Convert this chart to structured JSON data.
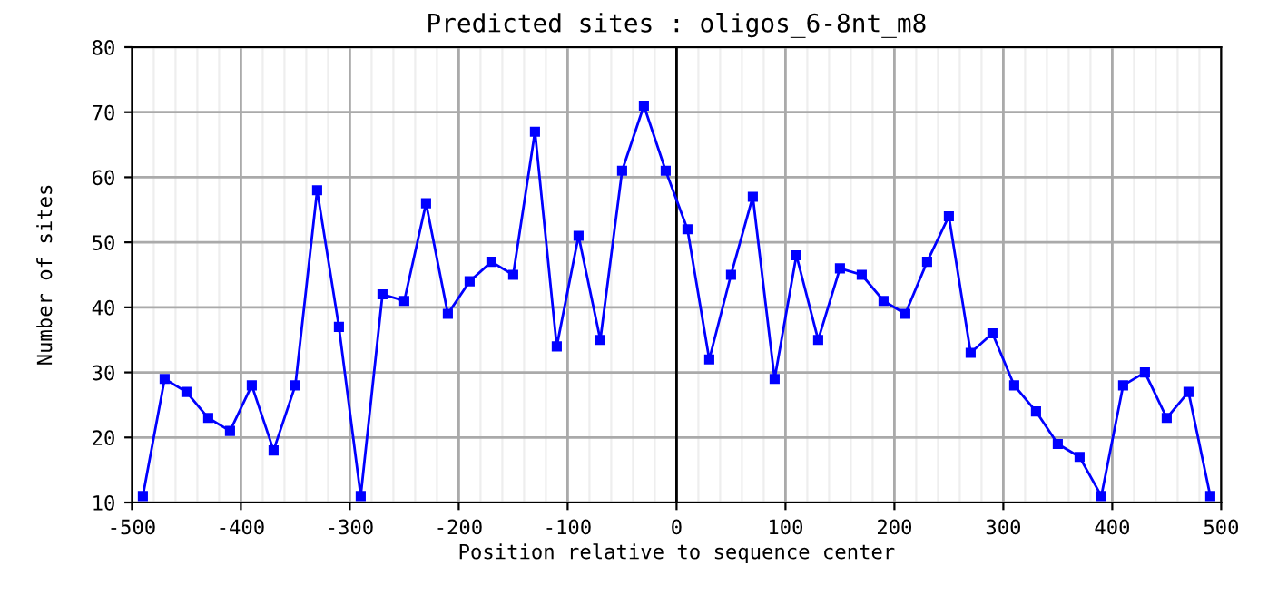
{
  "chart_data": {
    "type": "line",
    "title": "Predicted sites : oligos_6-8nt_m8",
    "xlabel": "Position relative to sequence center",
    "ylabel": "Number of sites",
    "x": [
      -490,
      -470,
      -450,
      -430,
      -410,
      -390,
      -370,
      -350,
      -330,
      -310,
      -290,
      -270,
      -250,
      -230,
      -210,
      -190,
      -170,
      -150,
      -130,
      -110,
      -90,
      -70,
      -50,
      -30,
      -10,
      10,
      30,
      50,
      70,
      90,
      110,
      130,
      150,
      170,
      190,
      210,
      230,
      250,
      270,
      290,
      310,
      330,
      350,
      370,
      390,
      410,
      430,
      450,
      470,
      490
    ],
    "series": [
      {
        "color": "#0000ff",
        "values": [
          11,
          29,
          27,
          23,
          21,
          28,
          18,
          28,
          58,
          37,
          11,
          42,
          41,
          56,
          39,
          44,
          47,
          45,
          67,
          34,
          51,
          35,
          61,
          71,
          61,
          52,
          32,
          45,
          57,
          29,
          48,
          35,
          46,
          45,
          41,
          39,
          47,
          54,
          33,
          36,
          28,
          24,
          19,
          17,
          11,
          28,
          30,
          23,
          27,
          11
        ]
      }
    ],
    "xlim": [
      -500,
      500
    ],
    "xticks": [
      -500,
      -400,
      -300,
      -200,
      -100,
      0,
      100,
      200,
      300,
      400,
      500
    ],
    "ylim": [
      10,
      80
    ],
    "yticks": [
      10,
      20,
      30,
      40,
      50,
      60,
      70,
      80
    ],
    "ref_lines": [
      {
        "axis": "x",
        "value": 0,
        "color": "#000000"
      }
    ],
    "grid": true,
    "marker": "square",
    "line_style": "solid",
    "legend": false
  }
}
